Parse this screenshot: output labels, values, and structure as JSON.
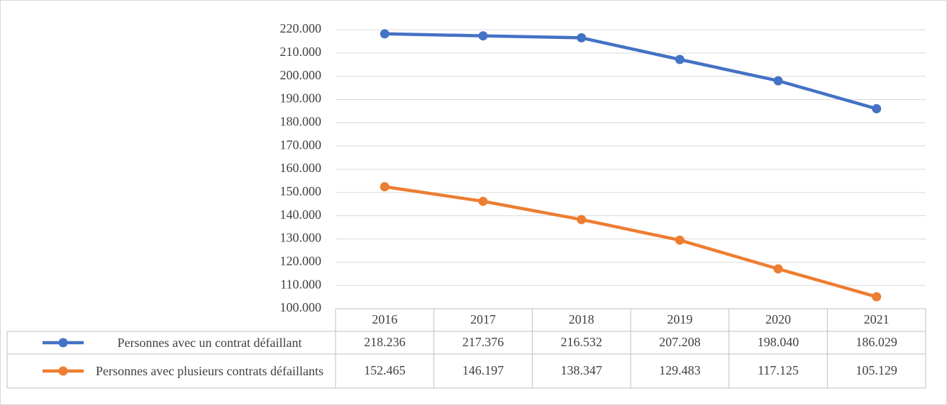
{
  "chart_data": {
    "type": "line",
    "categories": [
      "2016",
      "2017",
      "2018",
      "2019",
      "2020",
      "2021"
    ],
    "series": [
      {
        "name": "Personnes avec un contrat défaillant",
        "color": "#4472c4",
        "values": [
          218236,
          217376,
          216532,
          207208,
          198040,
          186029
        ],
        "value_labels": [
          "218.236",
          "217.376",
          "216.532",
          "207.208",
          "198.040",
          "186.029"
        ]
      },
      {
        "name": "Personnes avec plusieurs contrats défaillants",
        "color": "#ed7d31",
        "values": [
          152465,
          146197,
          138347,
          129483,
          117125,
          105129
        ],
        "value_labels": [
          "152.465",
          "146.197",
          "138.347",
          "129.483",
          "117.125",
          "105.129"
        ]
      }
    ],
    "ylim": [
      100000,
      220000
    ],
    "yticks": [
      {
        "value": 100000,
        "label": "100.000"
      },
      {
        "value": 110000,
        "label": "110.000"
      },
      {
        "value": 120000,
        "label": "120.000"
      },
      {
        "value": 130000,
        "label": "130.000"
      },
      {
        "value": 140000,
        "label": "140.000"
      },
      {
        "value": 150000,
        "label": "150.000"
      },
      {
        "value": 160000,
        "label": "160.000"
      },
      {
        "value": 170000,
        "label": "170.000"
      },
      {
        "value": 180000,
        "label": "180.000"
      },
      {
        "value": 190000,
        "label": "190.000"
      },
      {
        "value": 200000,
        "label": "200.000"
      },
      {
        "value": 210000,
        "label": "210.000"
      },
      {
        "value": 220000,
        "label": "220.000"
      }
    ],
    "grid": true
  }
}
